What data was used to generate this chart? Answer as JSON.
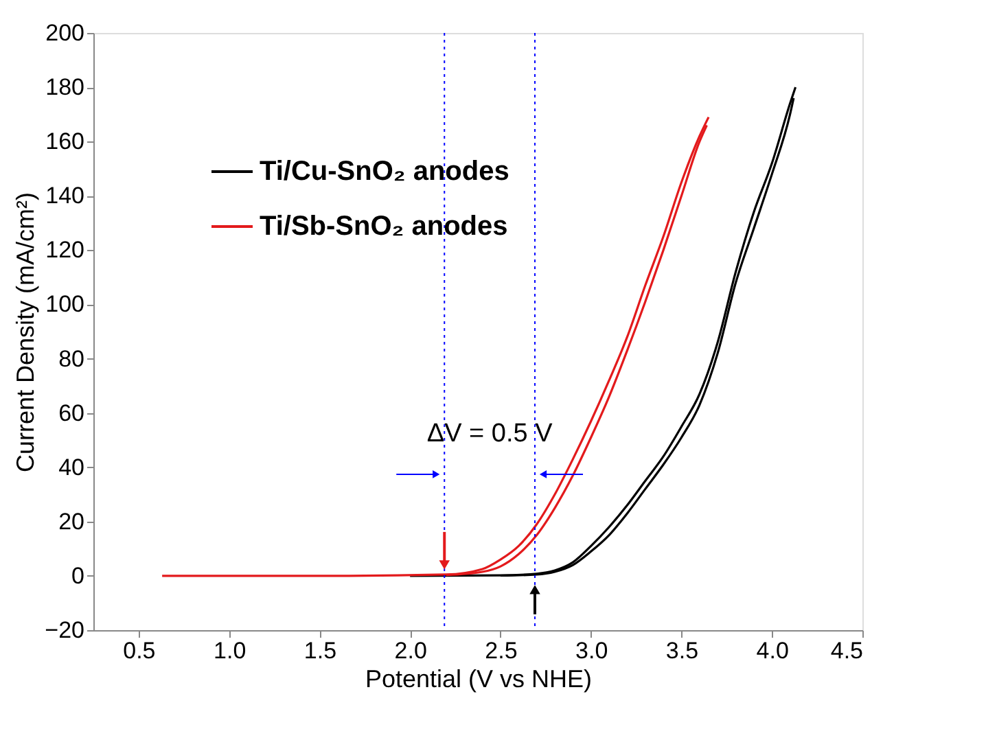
{
  "chart_data": {
    "type": "line",
    "xlabel": "Potential (V vs NHE)",
    "ylabel": "Current Density (mA/cm²)",
    "xlim": [
      0.25,
      4.5
    ],
    "xticks": [
      {
        "value": 0.5,
        "label": "0.5"
      },
      {
        "value": 1,
        "label": "1.0"
      },
      {
        "value": 1.5,
        "label": "1.5"
      },
      {
        "value": 2,
        "label": "2.0"
      },
      {
        "value": 2.5,
        "label": "2.5"
      },
      {
        "value": 3,
        "label": "3.0"
      },
      {
        "value": 3.5,
        "label": "3.5"
      },
      {
        "value": 4,
        "label": "4.0"
      },
      {
        "value": 4.5,
        "label": "4.5"
      }
    ],
    "ylim": [
      -20,
      200
    ],
    "yticks": [
      -20,
      0,
      20,
      40,
      60,
      80,
      100,
      120,
      140,
      160,
      180,
      200
    ],
    "series": [
      {
        "name": "Ti/Cu-SnO₂ anodes",
        "color": "#000000",
        "x": [
          2.0,
          2.5,
          2.7,
          2.8,
          2.9,
          3.0,
          3.1,
          3.2,
          3.3,
          3.4,
          3.5,
          3.6,
          3.7,
          3.8,
          3.9,
          4.0,
          4.1,
          4.13
        ],
        "values": [
          0,
          0.2,
          0.8,
          2,
          5,
          11,
          18,
          26,
          35,
          44,
          55,
          67,
          86,
          112,
          134,
          152,
          174,
          180
        ]
      },
      {
        "color": "#000000",
        "x": [
          2.5,
          2.7,
          2.8,
          2.9,
          3.0,
          3.1,
          3.2,
          3.3,
          3.4,
          3.5,
          3.6,
          3.7,
          3.8,
          3.9,
          4.0,
          4.1,
          4.12
        ],
        "values": [
          0.1,
          0.5,
          1.5,
          4,
          9,
          15,
          23,
          32,
          41,
          51,
          63,
          82,
          108,
          128,
          148,
          170,
          176
        ]
      },
      {
        "name": "Ti/Sb-SnO₂ anodes",
        "color": "#e31a1c",
        "x": [
          0.63,
          1.5,
          2.2,
          2.4,
          2.5,
          2.6,
          2.7,
          2.8,
          2.9,
          3.0,
          3.1,
          3.2,
          3.3,
          3.4,
          3.5,
          3.6,
          3.65
        ],
        "values": [
          0,
          0,
          0.5,
          2.5,
          6,
          11,
          19,
          30,
          43,
          57,
          72,
          88,
          107,
          125,
          145,
          162,
          169
        ]
      },
      {
        "color": "#e31a1c",
        "x": [
          2.2,
          2.4,
          2.5,
          2.6,
          2.7,
          2.8,
          2.9,
          3.0,
          3.1,
          3.2,
          3.3,
          3.4,
          3.5,
          3.6,
          3.64
        ],
        "values": [
          0.3,
          1.5,
          3.5,
          8,
          15,
          25,
          37,
          51,
          66,
          83,
          101,
          120,
          140,
          160,
          166
        ]
      }
    ],
    "ref_lines": [
      {
        "axis": "x",
        "value": 2.19,
        "label": null,
        "color": "#0000ff",
        "line_style": "dotted"
      },
      {
        "axis": "x",
        "value": 2.69,
        "label": null,
        "color": "#0000ff",
        "line_style": "dotted"
      }
    ],
    "annotations": [
      "ΔV = 0.5 V"
    ],
    "legend": "top left",
    "grid": false,
    "line_style": "solid",
    "marker": "none"
  }
}
